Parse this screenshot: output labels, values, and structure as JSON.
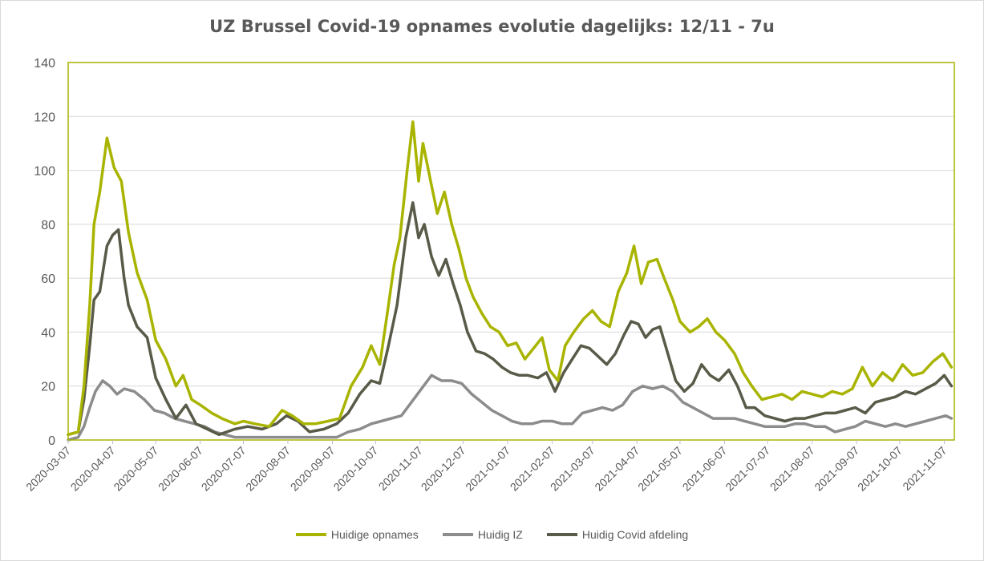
{
  "chart_data": {
    "type": "line",
    "title": "UZ Brussel Covid-19 opnames evolutie dagelijks: 12/11 - 7u",
    "xlabel": "",
    "ylabel": "",
    "ylim": [
      0,
      140
    ],
    "yticks": [
      "0",
      "20",
      "40",
      "60",
      "80",
      "100",
      "120",
      "140"
    ],
    "xticks": [
      "2020-03-07",
      "2020-04-07",
      "2020-05-07",
      "2020-06-07",
      "2020-07-07",
      "2020-08-07",
      "2020-09-07",
      "2020-10-07",
      "2020-11-07",
      "2020-12-07",
      "2021-01-07",
      "2021-02-07",
      "2021-03-07",
      "2021-04-07",
      "2021-05-07",
      "2021-06-07",
      "2021-07-07",
      "2021-08-07",
      "2021-09-07",
      "2021-10-07",
      "2021-11-07"
    ],
    "grid": true,
    "legend_position": "bottom",
    "series": [
      {
        "name": "Huidige opnames",
        "color": "#a9b400",
        "points": [
          [
            "2020-03-07",
            2
          ],
          [
            "2020-03-14",
            3
          ],
          [
            "2020-03-18",
            20
          ],
          [
            "2020-03-22",
            50
          ],
          [
            "2020-03-25",
            80
          ],
          [
            "2020-03-29",
            92
          ],
          [
            "2020-04-03",
            112
          ],
          [
            "2020-04-08",
            101
          ],
          [
            "2020-04-13",
            96
          ],
          [
            "2020-04-18",
            77
          ],
          [
            "2020-04-24",
            62
          ],
          [
            "2020-05-01",
            52
          ],
          [
            "2020-05-07",
            37
          ],
          [
            "2020-05-14",
            30
          ],
          [
            "2020-05-21",
            20
          ],
          [
            "2020-05-26",
            24
          ],
          [
            "2020-06-01",
            15
          ],
          [
            "2020-06-07",
            13
          ],
          [
            "2020-06-15",
            10
          ],
          [
            "2020-06-22",
            8
          ],
          [
            "2020-07-01",
            6
          ],
          [
            "2020-07-07",
            7
          ],
          [
            "2020-07-15",
            6
          ],
          [
            "2020-07-25",
            5
          ],
          [
            "2020-08-03",
            11
          ],
          [
            "2020-08-10",
            9
          ],
          [
            "2020-08-18",
            6
          ],
          [
            "2020-08-26",
            6
          ],
          [
            "2020-09-04",
            7
          ],
          [
            "2020-09-12",
            8
          ],
          [
            "2020-09-20",
            20
          ],
          [
            "2020-09-28",
            27
          ],
          [
            "2020-10-04",
            35
          ],
          [
            "2020-10-10",
            28
          ],
          [
            "2020-10-16",
            50
          ],
          [
            "2020-10-20",
            65
          ],
          [
            "2020-10-24",
            75
          ],
          [
            "2020-10-29",
            100
          ],
          [
            "2020-11-02",
            118
          ],
          [
            "2020-11-06",
            96
          ],
          [
            "2020-11-09",
            110
          ],
          [
            "2020-11-14",
            97
          ],
          [
            "2020-11-19",
            84
          ],
          [
            "2020-11-24",
            92
          ],
          [
            "2020-11-29",
            80
          ],
          [
            "2020-12-04",
            71
          ],
          [
            "2020-12-09",
            60
          ],
          [
            "2020-12-14",
            53
          ],
          [
            "2020-12-20",
            47
          ],
          [
            "2020-12-26",
            42
          ],
          [
            "2021-01-01",
            40
          ],
          [
            "2021-01-07",
            35
          ],
          [
            "2021-01-13",
            36
          ],
          [
            "2021-01-19",
            30
          ],
          [
            "2021-01-25",
            34
          ],
          [
            "2021-01-31",
            38
          ],
          [
            "2021-02-05",
            26
          ],
          [
            "2021-02-11",
            22
          ],
          [
            "2021-02-16",
            35
          ],
          [
            "2021-02-22",
            40
          ],
          [
            "2021-03-01",
            45
          ],
          [
            "2021-03-07",
            48
          ],
          [
            "2021-03-13",
            44
          ],
          [
            "2021-03-19",
            42
          ],
          [
            "2021-03-25",
            55
          ],
          [
            "2021-03-31",
            62
          ],
          [
            "2021-04-05",
            72
          ],
          [
            "2021-04-10",
            58
          ],
          [
            "2021-04-15",
            66
          ],
          [
            "2021-04-21",
            67
          ],
          [
            "2021-04-26",
            60
          ],
          [
            "2021-05-02",
            52
          ],
          [
            "2021-05-07",
            44
          ],
          [
            "2021-05-14",
            40
          ],
          [
            "2021-05-20",
            42
          ],
          [
            "2021-05-26",
            45
          ],
          [
            "2021-06-01",
            40
          ],
          [
            "2021-06-07",
            37
          ],
          [
            "2021-06-14",
            32
          ],
          [
            "2021-06-20",
            25
          ],
          [
            "2021-06-26",
            20
          ],
          [
            "2021-07-03",
            15
          ],
          [
            "2021-07-10",
            16
          ],
          [
            "2021-07-17",
            17
          ],
          [
            "2021-07-24",
            15
          ],
          [
            "2021-07-31",
            18
          ],
          [
            "2021-08-07",
            17
          ],
          [
            "2021-08-14",
            16
          ],
          [
            "2021-08-21",
            18
          ],
          [
            "2021-08-28",
            17
          ],
          [
            "2021-09-04",
            19
          ],
          [
            "2021-09-11",
            27
          ],
          [
            "2021-09-18",
            20
          ],
          [
            "2021-09-25",
            25
          ],
          [
            "2021-10-02",
            22
          ],
          [
            "2021-10-09",
            28
          ],
          [
            "2021-10-16",
            24
          ],
          [
            "2021-10-23",
            25
          ],
          [
            "2021-10-30",
            29
          ],
          [
            "2021-11-06",
            32
          ],
          [
            "2021-11-12",
            27
          ]
        ]
      },
      {
        "name": "Huidig IZ",
        "color": "#8c8c8c",
        "points": [
          [
            "2020-03-07",
            0
          ],
          [
            "2020-03-14",
            1
          ],
          [
            "2020-03-18",
            5
          ],
          [
            "2020-03-22",
            12
          ],
          [
            "2020-03-26",
            18
          ],
          [
            "2020-03-31",
            22
          ],
          [
            "2020-04-05",
            20
          ],
          [
            "2020-04-10",
            17
          ],
          [
            "2020-04-15",
            19
          ],
          [
            "2020-04-22",
            18
          ],
          [
            "2020-04-29",
            15
          ],
          [
            "2020-05-06",
            11
          ],
          [
            "2020-05-13",
            10
          ],
          [
            "2020-05-20",
            8
          ],
          [
            "2020-05-27",
            7
          ],
          [
            "2020-06-03",
            6
          ],
          [
            "2020-06-10",
            5
          ],
          [
            "2020-06-17",
            3
          ],
          [
            "2020-06-24",
            2
          ],
          [
            "2020-07-01",
            1
          ],
          [
            "2020-07-15",
            1
          ],
          [
            "2020-08-01",
            1
          ],
          [
            "2020-08-15",
            1
          ],
          [
            "2020-09-01",
            1
          ],
          [
            "2020-09-10",
            1
          ],
          [
            "2020-09-18",
            3
          ],
          [
            "2020-09-26",
            4
          ],
          [
            "2020-10-04",
            6
          ],
          [
            "2020-10-11",
            7
          ],
          [
            "2020-10-18",
            8
          ],
          [
            "2020-10-25",
            9
          ],
          [
            "2020-11-01",
            14
          ],
          [
            "2020-11-08",
            19
          ],
          [
            "2020-11-15",
            24
          ],
          [
            "2020-11-22",
            22
          ],
          [
            "2020-11-29",
            22
          ],
          [
            "2020-12-06",
            21
          ],
          [
            "2020-12-13",
            17
          ],
          [
            "2020-12-20",
            14
          ],
          [
            "2020-12-27",
            11
          ],
          [
            "2021-01-03",
            9
          ],
          [
            "2021-01-10",
            7
          ],
          [
            "2021-01-17",
            6
          ],
          [
            "2021-01-24",
            6
          ],
          [
            "2021-01-31",
            7
          ],
          [
            "2021-02-07",
            7
          ],
          [
            "2021-02-14",
            6
          ],
          [
            "2021-02-21",
            6
          ],
          [
            "2021-02-28",
            10
          ],
          [
            "2021-03-07",
            11
          ],
          [
            "2021-03-14",
            12
          ],
          [
            "2021-03-21",
            11
          ],
          [
            "2021-03-28",
            13
          ],
          [
            "2021-04-04",
            18
          ],
          [
            "2021-04-11",
            20
          ],
          [
            "2021-04-18",
            19
          ],
          [
            "2021-04-25",
            20
          ],
          [
            "2021-05-02",
            18
          ],
          [
            "2021-05-09",
            14
          ],
          [
            "2021-05-16",
            12
          ],
          [
            "2021-05-23",
            10
          ],
          [
            "2021-05-30",
            8
          ],
          [
            "2021-06-07",
            8
          ],
          [
            "2021-06-14",
            8
          ],
          [
            "2021-06-21",
            7
          ],
          [
            "2021-06-28",
            6
          ],
          [
            "2021-07-05",
            5
          ],
          [
            "2021-07-12",
            5
          ],
          [
            "2021-07-19",
            5
          ],
          [
            "2021-07-26",
            6
          ],
          [
            "2021-08-02",
            6
          ],
          [
            "2021-08-09",
            5
          ],
          [
            "2021-08-16",
            5
          ],
          [
            "2021-08-23",
            3
          ],
          [
            "2021-08-30",
            4
          ],
          [
            "2021-09-06",
            5
          ],
          [
            "2021-09-13",
            7
          ],
          [
            "2021-09-20",
            6
          ],
          [
            "2021-09-27",
            5
          ],
          [
            "2021-10-04",
            6
          ],
          [
            "2021-10-11",
            5
          ],
          [
            "2021-10-18",
            6
          ],
          [
            "2021-10-25",
            7
          ],
          [
            "2021-11-01",
            8
          ],
          [
            "2021-11-08",
            9
          ],
          [
            "2021-11-12",
            8
          ]
        ]
      },
      {
        "name": "Huidig Covid afdeling",
        "color": "#595a48",
        "points": [
          [
            "2020-03-07",
            2
          ],
          [
            "2020-03-14",
            3
          ],
          [
            "2020-03-18",
            15
          ],
          [
            "2020-03-22",
            35
          ],
          [
            "2020-03-25",
            52
          ],
          [
            "2020-03-29",
            55
          ],
          [
            "2020-04-03",
            72
          ],
          [
            "2020-04-07",
            76
          ],
          [
            "2020-04-11",
            78
          ],
          [
            "2020-04-15",
            60
          ],
          [
            "2020-04-18",
            50
          ],
          [
            "2020-04-24",
            42
          ],
          [
            "2020-05-01",
            38
          ],
          [
            "2020-05-07",
            23
          ],
          [
            "2020-05-14",
            15
          ],
          [
            "2020-05-21",
            8
          ],
          [
            "2020-05-28",
            13
          ],
          [
            "2020-06-04",
            6
          ],
          [
            "2020-06-12",
            4
          ],
          [
            "2020-06-20",
            2
          ],
          [
            "2020-07-01",
            4
          ],
          [
            "2020-07-10",
            5
          ],
          [
            "2020-07-20",
            4
          ],
          [
            "2020-07-30",
            6
          ],
          [
            "2020-08-06",
            9
          ],
          [
            "2020-08-14",
            7
          ],
          [
            "2020-08-22",
            3
          ],
          [
            "2020-09-01",
            4
          ],
          [
            "2020-09-10",
            6
          ],
          [
            "2020-09-18",
            10
          ],
          [
            "2020-09-26",
            17
          ],
          [
            "2020-10-04",
            22
          ],
          [
            "2020-10-10",
            21
          ],
          [
            "2020-10-16",
            35
          ],
          [
            "2020-10-22",
            50
          ],
          [
            "2020-10-28",
            75
          ],
          [
            "2020-11-02",
            88
          ],
          [
            "2020-11-06",
            75
          ],
          [
            "2020-11-10",
            80
          ],
          [
            "2020-11-15",
            68
          ],
          [
            "2020-11-20",
            61
          ],
          [
            "2020-11-25",
            67
          ],
          [
            "2020-11-30",
            58
          ],
          [
            "2020-12-05",
            50
          ],
          [
            "2020-12-10",
            40
          ],
          [
            "2020-12-16",
            33
          ],
          [
            "2020-12-22",
            32
          ],
          [
            "2020-12-28",
            30
          ],
          [
            "2021-01-03",
            27
          ],
          [
            "2021-01-09",
            25
          ],
          [
            "2021-01-15",
            24
          ],
          [
            "2021-01-21",
            24
          ],
          [
            "2021-01-28",
            23
          ],
          [
            "2021-02-03",
            25
          ],
          [
            "2021-02-09",
            18
          ],
          [
            "2021-02-15",
            25
          ],
          [
            "2021-02-21",
            30
          ],
          [
            "2021-02-27",
            35
          ],
          [
            "2021-03-05",
            34
          ],
          [
            "2021-03-11",
            31
          ],
          [
            "2021-03-17",
            28
          ],
          [
            "2021-03-23",
            32
          ],
          [
            "2021-03-29",
            39
          ],
          [
            "2021-04-03",
            44
          ],
          [
            "2021-04-08",
            43
          ],
          [
            "2021-04-13",
            38
          ],
          [
            "2021-04-18",
            41
          ],
          [
            "2021-04-23",
            42
          ],
          [
            "2021-04-28",
            33
          ],
          [
            "2021-05-04",
            22
          ],
          [
            "2021-05-10",
            18
          ],
          [
            "2021-05-16",
            21
          ],
          [
            "2021-05-22",
            28
          ],
          [
            "2021-05-28",
            24
          ],
          [
            "2021-06-03",
            22
          ],
          [
            "2021-06-10",
            26
          ],
          [
            "2021-06-16",
            20
          ],
          [
            "2021-06-22",
            12
          ],
          [
            "2021-06-28",
            12
          ],
          [
            "2021-07-05",
            9
          ],
          [
            "2021-07-12",
            8
          ],
          [
            "2021-07-19",
            7
          ],
          [
            "2021-07-26",
            8
          ],
          [
            "2021-08-02",
            8
          ],
          [
            "2021-08-09",
            9
          ],
          [
            "2021-08-16",
            10
          ],
          [
            "2021-08-23",
            10
          ],
          [
            "2021-08-30",
            11
          ],
          [
            "2021-09-06",
            12
          ],
          [
            "2021-09-13",
            10
          ],
          [
            "2021-09-20",
            14
          ],
          [
            "2021-09-27",
            15
          ],
          [
            "2021-10-04",
            16
          ],
          [
            "2021-10-11",
            18
          ],
          [
            "2021-10-18",
            17
          ],
          [
            "2021-10-25",
            19
          ],
          [
            "2021-11-01",
            21
          ],
          [
            "2021-11-07",
            24
          ],
          [
            "2021-11-12",
            20
          ]
        ]
      }
    ]
  }
}
